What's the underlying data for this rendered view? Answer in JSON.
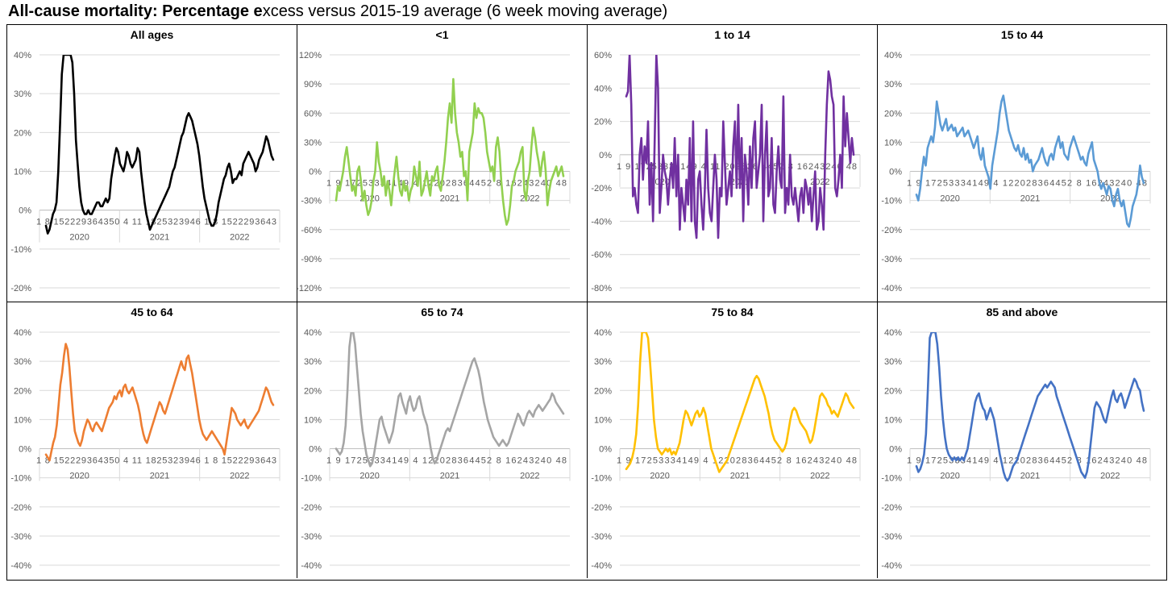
{
  "title": {
    "part1": "All-cause mortality: Percentage e",
    "part2": "xcess versus 2015-19 average (6 week moving average)"
  },
  "chart_data": [
    {
      "type": "line",
      "title": "All ages",
      "color": "#000000",
      "ylim": [
        -20,
        40
      ],
      "ticks": [
        40,
        30,
        20,
        10,
        0,
        -10,
        -20
      ],
      "tickfmt": "%",
      "weeklabels": "1 8 152229364350 4 11 1825323946 1 8 1522293643",
      "years": [
        "2020",
        "2021",
        "2022"
      ],
      "values": [
        -4,
        -6,
        -5,
        -3,
        -1,
        0,
        2,
        10,
        22,
        35,
        40,
        40,
        40,
        40,
        40,
        38,
        30,
        18,
        12,
        6,
        2,
        0,
        -1,
        -1,
        0,
        -1,
        -1,
        0,
        1,
        2,
        2,
        1,
        1,
        2,
        3,
        2,
        3,
        8,
        11,
        14,
        16,
        15,
        12,
        11,
        10,
        12,
        15,
        14,
        12,
        11,
        12,
        13,
        16,
        15,
        10,
        6,
        2,
        -1,
        -3,
        -5,
        -4,
        -3,
        -2,
        -1,
        0,
        1,
        2,
        3,
        4,
        5,
        6,
        8,
        10,
        11,
        13,
        15,
        17,
        19,
        20,
        22,
        24,
        25,
        24,
        23,
        21,
        19,
        17,
        14,
        10,
        6,
        3,
        1,
        -1,
        -3,
        -4,
        -4,
        -3,
        -1,
        2,
        4,
        6,
        8,
        9,
        11,
        12,
        10,
        7,
        8,
        8,
        9,
        10,
        9,
        12,
        13,
        14,
        15,
        14,
        13,
        12,
        10,
        11,
        13,
        14,
        15,
        17,
        19,
        18,
        16,
        14,
        13
      ]
    },
    {
      "type": "line",
      "title": "<1",
      "color": "#92D050",
      "ylim": [
        -120,
        120
      ],
      "ticks": [
        120,
        90,
        60,
        30,
        0,
        -30,
        -60,
        -90,
        -120
      ],
      "tickfmt": "%",
      "weeklabels": "1 9 17253334149 4 122028364452 8 16243240 48",
      "years": [
        "2020",
        "2021",
        "2022"
      ],
      "values": [
        -30,
        -15,
        -20,
        -10,
        0,
        15,
        25,
        10,
        -5,
        -20,
        -15,
        -25,
        0,
        5,
        -10,
        -30,
        -20,
        -35,
        -45,
        -40,
        -30,
        -10,
        0,
        30,
        10,
        0,
        -15,
        -5,
        -25,
        -10,
        -20,
        -35,
        -15,
        0,
        15,
        -5,
        -20,
        -25,
        -10,
        -20,
        -15,
        -30,
        -20,
        -15,
        5,
        -5,
        -15,
        10,
        -25,
        -20,
        -10,
        0,
        -15,
        -25,
        -5,
        -10,
        0,
        5,
        -15,
        -20,
        -5,
        10,
        30,
        55,
        70,
        50,
        95,
        60,
        40,
        30,
        15,
        20,
        -5,
        0,
        -30,
        20,
        30,
        40,
        70,
        55,
        65,
        60,
        60,
        55,
        40,
        20,
        10,
        0,
        5,
        -10,
        25,
        35,
        20,
        -10,
        -30,
        -45,
        -55,
        -50,
        -35,
        -15,
        -10,
        0,
        5,
        10,
        20,
        25,
        -20,
        -30,
        -10,
        0,
        25,
        45,
        35,
        20,
        10,
        -5,
        10,
        20,
        0,
        -35,
        -20,
        -10,
        -5,
        0,
        5,
        -5,
        0,
        5,
        -5
      ]
    },
    {
      "type": "line",
      "title": "1 to 14",
      "color": "#7030A0",
      "ylim": [
        -80,
        60
      ],
      "ticks": [
        60,
        40,
        20,
        0,
        -20,
        -40,
        -60,
        -80
      ],
      "tickfmt": "%",
      "weeklabels": "1 9 17253334149 4 11 202836 4452 8 16243240 48",
      "years": [
        "2020",
        "2021",
        "2022"
      ],
      "values": [
        35,
        38,
        60,
        30,
        -25,
        -20,
        -30,
        -35,
        0,
        10,
        -15,
        5,
        -5,
        20,
        -30,
        -5,
        -40,
        10,
        60,
        40,
        -35,
        -20,
        0,
        -10,
        -15,
        -30,
        -15,
        -5,
        -20,
        10,
        -25,
        0,
        -45,
        -20,
        -30,
        -40,
        -15,
        -30,
        10,
        -40,
        20,
        -40,
        -50,
        -15,
        -10,
        -30,
        -45,
        -20,
        15,
        -20,
        -35,
        -40,
        -20,
        0,
        -15,
        -50,
        -20,
        -25,
        20,
        -5,
        -30,
        -20,
        -10,
        -25,
        5,
        20,
        -20,
        30,
        -20,
        10,
        -40,
        0,
        -10,
        -30,
        5,
        -20,
        10,
        20,
        -20,
        -10,
        0,
        30,
        -40,
        0,
        20,
        -25,
        -20,
        10,
        -30,
        -35,
        -10,
        5,
        -15,
        -20,
        35,
        -35,
        -20,
        -30,
        0,
        -25,
        -30,
        -20,
        -30,
        -40,
        -25,
        -20,
        -35,
        -15,
        -20,
        -30,
        -20,
        -40,
        -25,
        -10,
        -45,
        -40,
        -20,
        -30,
        -45,
        0,
        30,
        50,
        45,
        35,
        30,
        -20,
        -25,
        -15,
        0,
        -20,
        35,
        5,
        25,
        10,
        -5,
        10,
        0
      ]
    },
    {
      "type": "line",
      "title": "15 to 44",
      "color": "#5B9BD5",
      "ylim": [
        -40,
        40
      ],
      "ticks": [
        40,
        30,
        20,
        10,
        0,
        -10,
        -20,
        -30,
        -40
      ],
      "tickfmt": "%",
      "weeklabels": "1 9 17253334149 4 122028364452 8 16243240 48",
      "years": [
        "2020",
        "2021",
        "2022"
      ],
      "values": [
        -8,
        -10,
        -6,
        0,
        5,
        2,
        8,
        10,
        12,
        10,
        15,
        24,
        20,
        16,
        14,
        16,
        18,
        14,
        15,
        16,
        14,
        15,
        12,
        13,
        14,
        15,
        12,
        13,
        14,
        12,
        10,
        8,
        10,
        12,
        6,
        4,
        8,
        2,
        0,
        -2,
        -6,
        2,
        6,
        10,
        14,
        20,
        24,
        26,
        22,
        18,
        14,
        12,
        10,
        8,
        7,
        9,
        6,
        5,
        8,
        4,
        6,
        3,
        4,
        0,
        2,
        3,
        4,
        6,
        8,
        5,
        3,
        2,
        5,
        6,
        4,
        8,
        10,
        12,
        8,
        10,
        6,
        5,
        4,
        8,
        10,
        12,
        10,
        8,
        6,
        4,
        5,
        3,
        2,
        6,
        8,
        10,
        4,
        2,
        0,
        -4,
        -6,
        -4,
        -6,
        -8,
        -5,
        -6,
        -10,
        -12,
        -8,
        -6,
        -10,
        -12,
        -10,
        -14,
        -18,
        -19,
        -16,
        -12,
        -10,
        -8,
        -4,
        2,
        -2,
        -4
      ]
    },
    {
      "type": "line",
      "title": "45 to 64",
      "color": "#ED7D31",
      "ylim": [
        -40,
        40
      ],
      "ticks": [
        40,
        30,
        20,
        10,
        0,
        -10,
        -20,
        -30,
        -40
      ],
      "tickfmt": "%",
      "weeklabels": "1 8 152229364350 4 11 1825323946 1 8 1522293643",
      "years": [
        "2020",
        "2021",
        "2022"
      ],
      "values": [
        -2,
        -3,
        -4,
        -1,
        2,
        4,
        8,
        15,
        22,
        26,
        32,
        36,
        34,
        28,
        20,
        12,
        6,
        4,
        2,
        1,
        3,
        6,
        8,
        10,
        9,
        7,
        6,
        8,
        9,
        8,
        7,
        6,
        8,
        10,
        12,
        14,
        15,
        16,
        18,
        17,
        19,
        20,
        18,
        21,
        22,
        20,
        19,
        20,
        21,
        19,
        17,
        15,
        12,
        8,
        5,
        3,
        2,
        4,
        6,
        8,
        10,
        12,
        14,
        16,
        15,
        13,
        12,
        14,
        16,
        18,
        20,
        22,
        24,
        26,
        28,
        30,
        28,
        27,
        31,
        32,
        29,
        26,
        22,
        18,
        14,
        10,
        7,
        5,
        4,
        3,
        4,
        5,
        6,
        5,
        4,
        3,
        2,
        1,
        0,
        -2,
        2,
        6,
        10,
        14,
        13,
        12,
        10,
        9,
        8,
        9,
        10,
        8,
        7,
        8,
        9,
        10,
        11,
        12,
        13,
        15,
        17,
        19,
        21,
        20,
        18,
        16,
        15
      ]
    },
    {
      "type": "line",
      "title": "65 to 74",
      "color": "#A5A5A5",
      "ylim": [
        -40,
        40
      ],
      "ticks": [
        40,
        30,
        20,
        10,
        0,
        -10,
        -20,
        -30,
        -40
      ],
      "tickfmt": "%",
      "weeklabels": "1 9 17253334149 4 122028364452 8 16243240 48",
      "years": [
        "2020",
        "2021",
        "2022"
      ],
      "values": [
        0,
        -1,
        -2,
        -1,
        2,
        8,
        20,
        35,
        40,
        40,
        36,
        28,
        20,
        12,
        6,
        2,
        -2,
        -4,
        -6,
        -5,
        -2,
        2,
        6,
        10,
        11,
        8,
        6,
        4,
        2,
        4,
        6,
        10,
        14,
        18,
        19,
        16,
        14,
        12,
        16,
        18,
        15,
        13,
        14,
        17,
        18,
        15,
        12,
        10,
        8,
        4,
        0,
        -3,
        -5,
        -4,
        -2,
        0,
        2,
        4,
        6,
        7,
        6,
        8,
        10,
        12,
        14,
        16,
        18,
        20,
        22,
        24,
        26,
        28,
        30,
        31,
        29,
        27,
        24,
        20,
        16,
        13,
        10,
        8,
        6,
        4,
        3,
        2,
        1,
        2,
        3,
        2,
        1,
        2,
        4,
        6,
        8,
        10,
        12,
        11,
        9,
        8,
        10,
        12,
        13,
        12,
        11,
        13,
        14,
        15,
        14,
        13,
        14,
        15,
        16,
        17,
        19,
        18,
        16,
        15,
        14,
        13,
        12
      ]
    },
    {
      "type": "line",
      "title": "75 to 84",
      "color": "#FFC000",
      "ylim": [
        -40,
        40
      ],
      "ticks": [
        40,
        30,
        20,
        10,
        0,
        -10,
        -20,
        -30,
        -40
      ],
      "tickfmt": "%",
      "weeklabels": "1 9 17253334149 4 122028364452 8 16243240 48",
      "years": [
        "2020",
        "2021",
        "2022"
      ],
      "values": [
        -7,
        -6,
        -5,
        -3,
        0,
        5,
        15,
        30,
        40,
        40,
        40,
        38,
        30,
        20,
        10,
        4,
        0,
        -1,
        -2,
        -1,
        0,
        -1,
        0,
        -2,
        -1,
        -2,
        0,
        2,
        6,
        10,
        13,
        12,
        10,
        8,
        10,
        12,
        13,
        11,
        12,
        14,
        12,
        8,
        4,
        0,
        -2,
        -4,
        -6,
        -8,
        -7,
        -6,
        -5,
        -4,
        -2,
        0,
        2,
        4,
        6,
        8,
        10,
        12,
        14,
        16,
        18,
        20,
        22,
        24,
        25,
        24,
        22,
        20,
        18,
        15,
        12,
        8,
        5,
        3,
        2,
        1,
        0,
        -1,
        0,
        2,
        6,
        10,
        13,
        14,
        13,
        11,
        9,
        8,
        7,
        6,
        4,
        2,
        3,
        6,
        10,
        14,
        18,
        19,
        18,
        17,
        15,
        14,
        12,
        13,
        12,
        11,
        13,
        15,
        17,
        19,
        18,
        16,
        15,
        14
      ]
    },
    {
      "type": "line",
      "title": "85 and above",
      "color": "#4472C4",
      "ylim": [
        -40,
        40
      ],
      "ticks": [
        40,
        30,
        20,
        10,
        0,
        -10,
        -20,
        -30,
        -40
      ],
      "tickfmt": "%",
      "weeklabels": "1 9 17253334149 4 122028364452 8 16243240 48",
      "years": [
        "2020",
        "2021",
        "2022"
      ],
      "values": [
        -6,
        -8,
        -7,
        -5,
        -2,
        5,
        20,
        38,
        40,
        40,
        40,
        36,
        28,
        18,
        10,
        4,
        0,
        -2,
        -3,
        -4,
        -3,
        -4,
        -3,
        -4,
        -3,
        -4,
        -2,
        0,
        4,
        8,
        12,
        16,
        18,
        19,
        16,
        14,
        13,
        10,
        12,
        14,
        12,
        10,
        6,
        2,
        -2,
        -5,
        -8,
        -10,
        -11,
        -10,
        -8,
        -6,
        -5,
        -4,
        -2,
        0,
        2,
        4,
        6,
        8,
        10,
        12,
        14,
        16,
        18,
        19,
        20,
        21,
        22,
        21,
        22,
        23,
        22,
        21,
        18,
        16,
        14,
        12,
        10,
        8,
        6,
        4,
        2,
        0,
        -2,
        -4,
        -6,
        -8,
        -9,
        -10,
        -8,
        -4,
        2,
        8,
        14,
        16,
        15,
        14,
        12,
        10,
        9,
        12,
        15,
        18,
        20,
        17,
        16,
        18,
        19,
        17,
        14,
        16,
        18,
        20,
        22,
        24,
        23,
        21,
        20,
        16,
        13
      ]
    }
  ]
}
